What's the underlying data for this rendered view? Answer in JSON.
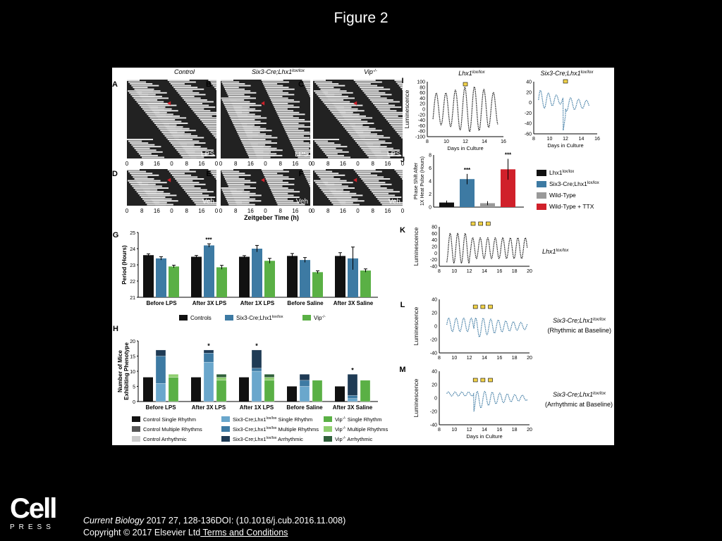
{
  "slide": {
    "title": "Figure 2",
    "citation_journal": "Current Biology",
    "citation_rest": " 2017 27, 128-136DOI: (10.1016/j.cub.2016.11.008)",
    "copyright": "Copyright © 2017 Elsevier Ltd",
    "terms_link": " Terms and Conditions",
    "logo_word": "Cell",
    "logo_sub": "PRESS"
  },
  "colors": {
    "control": "#111111",
    "six3": "#3d7aa3",
    "six3_light": "#6aa7cc",
    "six3_dark": "#1f3b55",
    "vip": "#5ab045",
    "vip_dark": "#2f5f3a",
    "wt": "#999999",
    "ttx": "#d0202a",
    "pulse": "#f2d34a"
  },
  "acto": {
    "titles": [
      "Control",
      "Six3-Cre;Lhx1",
      "Vip"
    ],
    "title_sups": [
      "",
      "lox/lox",
      "-/-"
    ],
    "letters_top": [
      "A",
      "B",
      "C"
    ],
    "letters_bottom": [
      "D",
      "E",
      "F"
    ],
    "top_tag": "LPS",
    "bottom_tag": "Veh",
    "ticks": [
      "0",
      "8",
      "16",
      "0",
      "8",
      "16",
      "0"
    ],
    "xaxis": "Zeitgeber Time (h)"
  },
  "chart_data": [
    {
      "id": "G",
      "type": "bar",
      "ylabel": "Period (Hours)",
      "ylim": [
        21,
        25
      ],
      "yticks": [
        "21",
        "22",
        "23",
        "24",
        "25"
      ],
      "categories": [
        "Before LPS",
        "After 3X LPS",
        "After 1X LPS",
        "Before Saline",
        "After 3X Saline"
      ],
      "series": [
        {
          "name": "Controls",
          "values": [
            23.6,
            23.5,
            23.5,
            23.55,
            23.55
          ],
          "err": [
            0.08,
            0.08,
            0.07,
            0.15,
            0.2
          ]
        },
        {
          "name": "Six3-Cre;Lhx1",
          "values": [
            23.4,
            24.2,
            24.0,
            23.3,
            23.4
          ],
          "err": [
            0.1,
            0.1,
            0.2,
            0.15,
            0.7
          ]
        },
        {
          "name": "Vip",
          "values": [
            22.9,
            22.85,
            23.25,
            22.55,
            22.65
          ],
          "err": [
            0.08,
            0.12,
            0.15,
            0.08,
            0.1
          ]
        }
      ],
      "annotation": "***",
      "legend": [
        "Controls",
        "Six3-Cre;Lhx1",
        "Vip"
      ],
      "legend_sups": [
        "",
        "lox/lox",
        "-/-"
      ]
    },
    {
      "id": "H",
      "type": "bar",
      "ylabel": "Number of Mice Exhibiting Phenotype",
      "ylim": [
        0,
        20
      ],
      "yticks": [
        "0",
        "5",
        "10",
        "15",
        "20"
      ],
      "categories": [
        "Before LPS",
        "After 3X LPS",
        "After 1X LPS",
        "Before Saline",
        "After 3X Saline"
      ],
      "control_single": [
        8,
        8,
        8,
        5,
        5
      ],
      "six3_stacks": [
        [
          6,
          9,
          2
        ],
        [
          13,
          3,
          1
        ],
        [
          10,
          1,
          6
        ],
        [
          5,
          2,
          2
        ],
        [
          1,
          1,
          7
        ]
      ],
      "vip_stacks": [
        [
          8,
          1,
          0
        ],
        [
          7,
          1,
          1
        ],
        [
          7,
          1,
          1
        ],
        [
          7,
          0,
          0
        ],
        [
          7,
          0,
          0
        ]
      ],
      "annotations": [
        "",
        "*",
        "*",
        "",
        "*"
      ],
      "legend": [
        [
          "Control Single Rhythm",
          "Six3-Cre;Lhx1|lox/lox| Single Rhythm",
          "Vip|-/-| Single Rhythm"
        ],
        [
          "Control Multiple Rhythms",
          "Six3-Cre;Lhx1|lox/lox| Multiple Rhythms",
          "Vip|-/-| Multiple Rhythms"
        ],
        [
          "Control Arrhythmic",
          "Six3-Cre;Lhx1|lox/lox| Arrhythmic",
          "Vip|-/-| Arrhythmic"
        ]
      ]
    },
    {
      "id": "I1",
      "type": "line",
      "title": "Lhx1",
      "title_sup": "lox/lox",
      "ylabel": "Luminescence",
      "xlabel": "Days in Culture",
      "xlim": [
        8,
        16
      ],
      "ylim": [
        -100,
        100
      ],
      "xticks": [
        "8",
        "10",
        "12",
        "14",
        "16"
      ],
      "yticks": [
        "100",
        "80",
        "60",
        "40",
        "20",
        "0",
        "-20",
        "-40",
        "-60",
        "-80",
        "-100"
      ],
      "period_days": 1.0,
      "amplitude": 82,
      "pulse_day": 12.0
    },
    {
      "id": "I2",
      "type": "line",
      "title": "Six3-Cre;Lhx1",
      "title_sup": "lox/lox",
      "xlabel": "Days in Culture",
      "xlim": [
        8,
        16
      ],
      "ylim": [
        -60,
        40
      ],
      "xticks": [
        "8",
        "10",
        "12",
        "14",
        "16"
      ],
      "yticks": [
        "40",
        "20",
        "0",
        "-20",
        "-40",
        "-60"
      ],
      "pulse_day": 12.0
    },
    {
      "id": "J",
      "type": "bar",
      "ylabel": "Phase Shift After 1X Heat Pulse (Hours)",
      "ylim": [
        0,
        8
      ],
      "yticks": [
        "0",
        "2",
        "4",
        "6",
        "8"
      ],
      "categories": [
        "Lhx1",
        "Six3-Cre;Lhx1",
        "Wild-Type",
        "Wild-Type + TTX"
      ],
      "category_sups": [
        "lox/lox",
        "lox/lox",
        "",
        ""
      ],
      "values": [
        0.7,
        4.3,
        0.6,
        5.8
      ],
      "err": [
        0.3,
        0.8,
        0.3,
        1.6
      ],
      "annotations": [
        "",
        "***",
        "",
        "***"
      ]
    },
    {
      "id": "K",
      "type": "line",
      "ylabel": "Luminescence",
      "xlim": [
        8,
        20
      ],
      "ylim": [
        -40,
        80
      ],
      "xticks": [
        "8",
        "10",
        "12",
        "14",
        "16",
        "18",
        "20"
      ],
      "yticks": [
        "80",
        "60",
        "40",
        "20",
        "0",
        "-20",
        "-40"
      ],
      "pulse_days": [
        12.5,
        13.5,
        14.5
      ],
      "label": "Lhx1",
      "label_sup": "lox/lox"
    },
    {
      "id": "L",
      "type": "line",
      "ylabel": "Luminescence",
      "xlim": [
        8,
        20
      ],
      "ylim": [
        -40,
        40
      ],
      "xticks": [
        "8",
        "10",
        "12",
        "14",
        "16",
        "18",
        "20"
      ],
      "yticks": [
        "40",
        "20",
        "0",
        "-20",
        "-40"
      ],
      "pulse_days": [
        12.8,
        13.8,
        14.8
      ],
      "label": "Six3-Cre;Lhx1",
      "label_sup": "lox/lox",
      "label2": "(Rhythmic at Baseline)"
    },
    {
      "id": "M",
      "type": "line",
      "ylabel": "Luminescence",
      "xlabel": "Days in Culture",
      "xlim": [
        8,
        20
      ],
      "ylim": [
        -40,
        40
      ],
      "xticks": [
        "8",
        "10",
        "12",
        "14",
        "16",
        "18",
        "20"
      ],
      "yticks": [
        "40",
        "20",
        "0",
        "-20",
        "-40"
      ],
      "pulse_days": [
        12.8,
        13.8,
        14.8
      ],
      "label": "Six3-Cre;Lhx1",
      "label_sup": "lox/lox",
      "label2": "(Arrhythmic at Baseline)"
    }
  ]
}
